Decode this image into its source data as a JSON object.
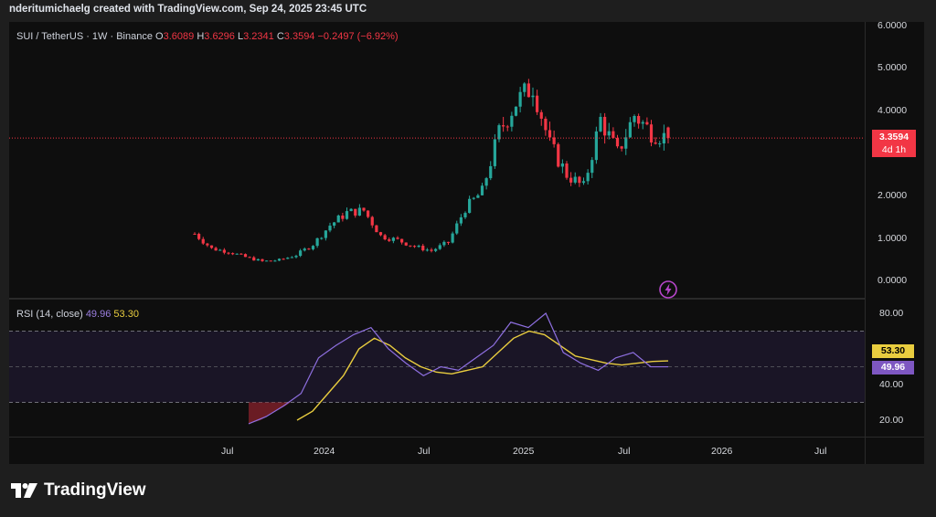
{
  "caption": "nderitumichaelg created with TradingView.com, Sep 24, 2025 23:45 UTC",
  "legend": {
    "symbol": "SUI / TetherUS · 1W · Binance",
    "o_label": "O",
    "o_value": "3.6089",
    "h_label": "H",
    "h_value": "3.6296",
    "l_label": "L",
    "l_value": "3.2341",
    "c_label": "C",
    "c_value": "3.3594",
    "change": "−0.2497 (−6.92%)"
  },
  "rsi_legend": {
    "label": "RSI (14, close)",
    "rsi_value": "49.96",
    "ma_value": "53.30"
  },
  "price_axis": [
    "6.0000",
    "5.0000",
    "4.0000",
    "3.0000",
    "2.0000",
    "1.0000",
    "0.0000"
  ],
  "rsi_axis": [
    "80.00",
    "40.00",
    "20.00"
  ],
  "time_axis": [
    "Jul",
    "2024",
    "Jul",
    "2025",
    "Jul",
    "2026",
    "Jul"
  ],
  "price_tag": {
    "price": "3.3594",
    "countdown": "4d 1h"
  },
  "rsi_tags": {
    "ma": "53.30",
    "rsi": "49.96"
  },
  "brand": "TradingView",
  "icons": {
    "logo": "tradingview-logo-icon",
    "flash": "lightning-icon"
  },
  "colors": {
    "up": "#26a69a",
    "down": "#f23645",
    "rsi": "#7e57c2",
    "rsi_ma": "#e9cd3f"
  },
  "chart_data": [
    {
      "type": "candlestick",
      "title": "SUI / TetherUS · 1W · Binance",
      "x": [
        "2023-05",
        "2023-06",
        "2023-07",
        "2023-08",
        "2023-09",
        "2023-10",
        "2023-11",
        "2023-12",
        "2024-01",
        "2024-02",
        "2024-03",
        "2024-04",
        "2024-05",
        "2024-06",
        "2024-07",
        "2024-08",
        "2024-09",
        "2024-10",
        "2024-11",
        "2024-12",
        "2025-01",
        "2025-02",
        "2025-03",
        "2025-04",
        "2025-05",
        "2025-06",
        "2025-07",
        "2025-08",
        "2025-09"
      ],
      "close": [
        1.1,
        0.75,
        0.68,
        0.55,
        0.45,
        0.48,
        0.6,
        0.85,
        1.3,
        1.6,
        1.65,
        1.05,
        0.95,
        0.8,
        0.7,
        0.9,
        1.7,
        2.1,
        3.5,
        4.2,
        4.6,
        3.2,
        2.5,
        2.2,
        3.8,
        3.0,
        3.9,
        3.5,
        3.36
      ],
      "ylim": [
        0,
        6
      ],
      "last_price": 3.3594,
      "ohlc_last": {
        "open": 3.6089,
        "high": 3.6296,
        "low": 3.2341,
        "close": 3.3594
      }
    },
    {
      "type": "line",
      "title": "RSI (14, close)",
      "series": [
        {
          "name": "RSI",
          "values": [
            18,
            22,
            28,
            35,
            55,
            62,
            68,
            72,
            60,
            52,
            45,
            50,
            48,
            55,
            62,
            75,
            72,
            80,
            58,
            52,
            48,
            55,
            58,
            50,
            49.96
          ]
        },
        {
          "name": "RSI MA",
          "values": [
            20,
            25,
            35,
            45,
            60,
            66,
            62,
            55,
            50,
            47,
            46,
            48,
            50,
            58,
            66,
            70,
            68,
            62,
            56,
            54,
            52,
            51,
            52,
            53,
            53.3
          ]
        }
      ],
      "ylim": [
        10,
        90
      ],
      "bands": [
        30,
        70
      ]
    }
  ]
}
